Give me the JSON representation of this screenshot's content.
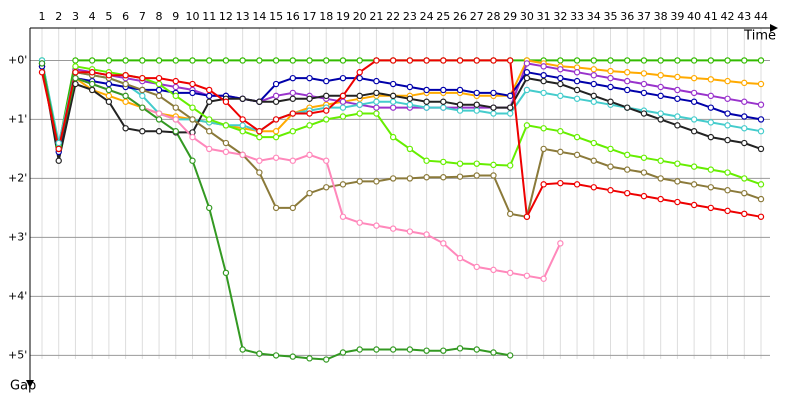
{
  "chart_data": {
    "type": "line",
    "x_label": "Time",
    "y_label": "Gap",
    "categories": [
      "1",
      "2",
      "3",
      "4",
      "5",
      "6",
      "7",
      "8",
      "9",
      "10",
      "11",
      "12",
      "13",
      "14",
      "15",
      "16",
      "17",
      "18",
      "19",
      "20",
      "21",
      "22",
      "23",
      "24",
      "25",
      "26",
      "27",
      "28",
      "29",
      "30",
      "31",
      "32",
      "33",
      "34",
      "35",
      "36",
      "37",
      "38",
      "39",
      "40",
      "41",
      "42",
      "43",
      "44"
    ],
    "ylim": [
      -0.55,
      5.4
    ],
    "y_inverted": true,
    "yticks": [
      {
        "value": 0,
        "label": "+0'"
      },
      {
        "value": 1,
        "label": "+1'"
      },
      {
        "value": 2,
        "label": "+2'"
      },
      {
        "value": 3,
        "label": "+3'"
      },
      {
        "value": 4,
        "label": "+4'"
      },
      {
        "value": 5,
        "label": "+5'"
      }
    ],
    "grid": true,
    "series": [
      {
        "color": "#33bb00",
        "values": [
          0,
          1.45,
          0,
          0,
          0,
          0,
          0,
          0,
          0,
          0,
          0,
          0,
          0,
          0,
          0,
          0,
          0,
          0,
          0,
          0,
          0,
          0,
          0,
          0,
          0,
          0,
          0,
          0,
          0,
          0,
          0,
          0,
          0,
          0,
          0,
          0,
          0,
          0,
          0,
          0,
          0,
          0,
          0,
          0
        ]
      },
      {
        "color": "#ffaa00",
        "values": [
          0.1,
          1.5,
          0.3,
          0.5,
          0.6,
          0.7,
          0.8,
          0.9,
          0.95,
          1.0,
          1.05,
          1.1,
          1.15,
          1.2,
          1.2,
          0.9,
          0.8,
          0.75,
          0.7,
          0.65,
          0.6,
          0.6,
          0.6,
          0.55,
          0.55,
          0.55,
          0.6,
          0.6,
          0.6,
          0.0,
          0.05,
          0.1,
          0.12,
          0.15,
          0.18,
          0.2,
          0.22,
          0.25,
          0.28,
          0.3,
          0.32,
          0.35,
          0.38,
          0.4
        ]
      },
      {
        "color": "#9933cc",
        "values": [
          0.1,
          1.5,
          0.15,
          0.2,
          0.25,
          0.3,
          0.35,
          0.4,
          0.45,
          0.5,
          0.6,
          0.6,
          0.65,
          0.7,
          0.6,
          0.55,
          0.6,
          0.65,
          0.7,
          0.75,
          0.8,
          0.8,
          0.8,
          0.8,
          0.8,
          0.8,
          0.8,
          0.8,
          0.8,
          0.05,
          0.1,
          0.15,
          0.2,
          0.25,
          0.3,
          0.35,
          0.4,
          0.45,
          0.5,
          0.55,
          0.6,
          0.65,
          0.7,
          0.75
        ]
      },
      {
        "color": "#44cccc",
        "values": [
          0,
          1.4,
          0.2,
          0.25,
          0.3,
          0.4,
          0.6,
          0.9,
          1.0,
          1.0,
          1.05,
          1.1,
          1.1,
          1.2,
          1.0,
          0.9,
          0.85,
          0.8,
          0.8,
          0.75,
          0.7,
          0.7,
          0.75,
          0.8,
          0.8,
          0.85,
          0.85,
          0.9,
          0.9,
          0.5,
          0.55,
          0.6,
          0.65,
          0.7,
          0.75,
          0.8,
          0.85,
          0.9,
          0.95,
          1.0,
          1.05,
          1.1,
          1.15,
          1.2
        ]
      },
      {
        "color": "#0000aa",
        "values": [
          0.1,
          1.55,
          0.3,
          0.35,
          0.4,
          0.45,
          0.5,
          0.5,
          0.55,
          0.55,
          0.6,
          0.6,
          0.65,
          0.7,
          0.4,
          0.3,
          0.3,
          0.35,
          0.3,
          0.3,
          0.35,
          0.4,
          0.45,
          0.5,
          0.5,
          0.5,
          0.55,
          0.55,
          0.6,
          0.2,
          0.25,
          0.3,
          0.35,
          0.4,
          0.45,
          0.5,
          0.55,
          0.6,
          0.65,
          0.7,
          0.8,
          0.9,
          0.95,
          1.0
        ]
      },
      {
        "color": "#222222",
        "values": [
          0.05,
          1.7,
          0.4,
          0.5,
          0.7,
          1.15,
          1.2,
          1.2,
          1.22,
          1.22,
          0.7,
          0.65,
          0.65,
          0.7,
          0.7,
          0.65,
          0.65,
          0.6,
          0.6,
          0.6,
          0.55,
          0.6,
          0.65,
          0.7,
          0.7,
          0.75,
          0.75,
          0.8,
          0.8,
          0.3,
          0.35,
          0.4,
          0.5,
          0.6,
          0.7,
          0.8,
          0.9,
          1.0,
          1.1,
          1.2,
          1.3,
          1.35,
          1.4,
          1.5
        ]
      },
      {
        "color": "#66ee00",
        "values": [
          null,
          null,
          0.1,
          0.15,
          0.2,
          0.25,
          0.3,
          0.4,
          0.6,
          0.8,
          1.0,
          1.1,
          1.2,
          1.3,
          1.3,
          1.2,
          1.1,
          1.0,
          0.95,
          0.9,
          0.9,
          1.3,
          1.5,
          1.7,
          1.72,
          1.75,
          1.75,
          1.77,
          1.78,
          1.1,
          1.15,
          1.2,
          1.3,
          1.4,
          1.5,
          1.6,
          1.65,
          1.7,
          1.75,
          1.8,
          1.85,
          1.9,
          2.0,
          2.1
        ]
      },
      {
        "color": "#8b7a3a",
        "values": [
          null,
          null,
          0.2,
          0.25,
          0.3,
          0.4,
          0.5,
          0.6,
          0.8,
          1.0,
          1.2,
          1.4,
          1.6,
          1.9,
          2.5,
          2.5,
          2.25,
          2.15,
          2.1,
          2.05,
          2.05,
          2.0,
          2.0,
          1.98,
          1.98,
          1.97,
          1.95,
          1.95,
          2.6,
          2.65,
          1.5,
          1.55,
          1.6,
          1.7,
          1.8,
          1.85,
          1.9,
          2.0,
          2.05,
          2.1,
          2.15,
          2.2,
          2.25,
          2.35
        ]
      },
      {
        "color": "#ff88bb",
        "values": [
          null,
          null,
          0.3,
          0.4,
          0.5,
          0.6,
          0.8,
          0.9,
          1.0,
          1.3,
          1.5,
          1.55,
          1.6,
          1.7,
          1.65,
          1.7,
          1.6,
          1.7,
          2.65,
          2.75,
          2.8,
          2.85,
          2.9,
          2.95,
          3.1,
          3.35,
          3.5,
          3.55,
          3.6,
          3.65,
          3.7,
          3.1,
          null,
          null,
          null,
          null,
          null,
          null,
          null,
          null,
          null,
          null,
          null,
          null
        ]
      },
      {
        "color": "#339922",
        "values": [
          0.05,
          1.5,
          0.3,
          0.4,
          0.5,
          0.6,
          0.8,
          1.0,
          1.2,
          1.7,
          2.5,
          3.6,
          4.9,
          4.97,
          5.0,
          5.02,
          5.05,
          5.07,
          4.95,
          4.9,
          4.9,
          4.9,
          4.9,
          4.92,
          4.92,
          4.88,
          4.9,
          4.95,
          5.0,
          null,
          null,
          null,
          null,
          null,
          null,
          null,
          null,
          null,
          null,
          null,
          null,
          null,
          null,
          null
        ]
      },
      {
        "color": "#ee0000",
        "values": [
          0.2,
          1.5,
          0.2,
          0.2,
          0.25,
          0.25,
          0.3,
          0.3,
          0.35,
          0.4,
          0.5,
          0.7,
          1.0,
          1.2,
          1.0,
          0.9,
          0.9,
          0.85,
          0.6,
          0.2,
          0,
          0,
          0,
          0,
          0,
          0,
          0,
          0,
          0,
          2.65,
          2.1,
          2.08,
          2.1,
          2.15,
          2.2,
          2.25,
          2.3,
          2.35,
          2.4,
          2.45,
          2.5,
          2.55,
          2.6,
          2.65
        ]
      }
    ]
  }
}
